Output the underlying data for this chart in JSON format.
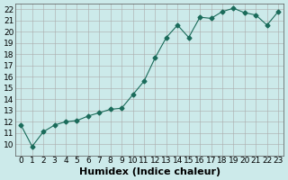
{
  "x": [
    0,
    1,
    2,
    3,
    4,
    5,
    6,
    7,
    8,
    9,
    10,
    11,
    12,
    13,
    14,
    15,
    16,
    17,
    18,
    19,
    20,
    21,
    22,
    23
  ],
  "y": [
    11.7,
    9.8,
    11.1,
    11.7,
    12.0,
    12.1,
    12.5,
    12.8,
    13.1,
    13.2,
    14.4,
    15.6,
    17.7,
    19.5,
    20.6,
    19.5,
    21.3,
    21.2,
    21.8,
    22.1,
    21.7,
    21.5,
    20.6,
    21.8
  ],
  "xlabel": "Humidex (Indice chaleur)",
  "xlim": [
    -0.5,
    23.5
  ],
  "ylim": [
    9,
    22.5
  ],
  "yticks": [
    10,
    11,
    12,
    13,
    14,
    15,
    16,
    17,
    18,
    19,
    20,
    21,
    22
  ],
  "xticks": [
    0,
    1,
    2,
    3,
    4,
    5,
    6,
    7,
    8,
    9,
    10,
    11,
    12,
    13,
    14,
    15,
    16,
    17,
    18,
    19,
    20,
    21,
    22,
    23
  ],
  "line_color": "#1a6b5a",
  "marker": "D",
  "marker_size": 2.5,
  "bg_color": "#cceaea",
  "grid_color": "#aaaaaa",
  "xlabel_fontsize": 8,
  "tick_fontsize": 6.5
}
